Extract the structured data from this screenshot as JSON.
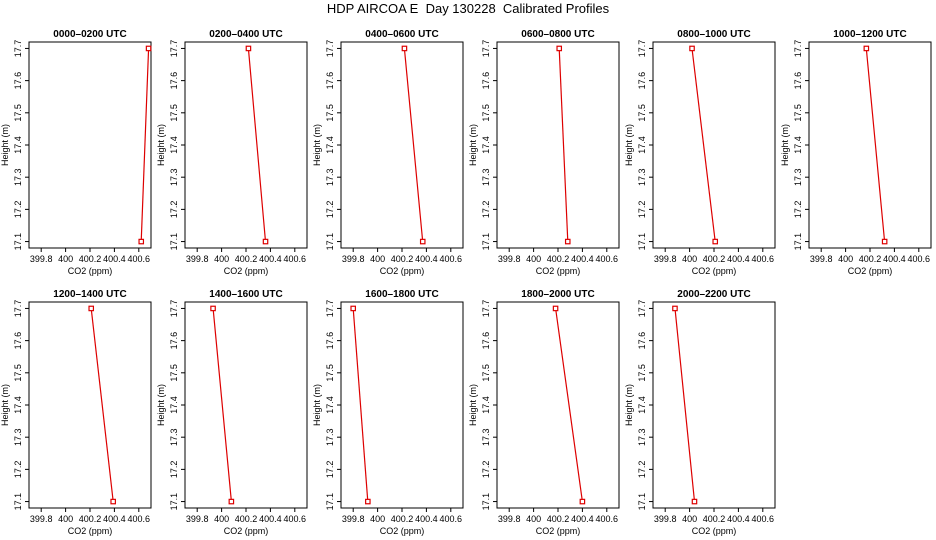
{
  "figure_title": "HDP AIRCOA E  Day 130228  Calibrated Profiles",
  "chart_data": {
    "type": "line",
    "xlabel": "CO2 (ppm)",
    "ylabel": "Height (m)",
    "xlim": [
      399.7,
      400.7
    ],
    "ylim": [
      17.08,
      17.72
    ],
    "x_ticks": [
      "399.8",
      "400",
      "400.2",
      "400.4",
      "400.6"
    ],
    "y_ticks": [
      "17.1",
      "17.2",
      "17.3",
      "17.4",
      "17.5",
      "17.6",
      "17.7"
    ],
    "series_color": "#dd0000",
    "panels": [
      {
        "title": "0000–0200 UTC",
        "points": [
          [
            400.68,
            17.7
          ],
          [
            400.62,
            17.1
          ]
        ]
      },
      {
        "title": "0200–0400 UTC",
        "points": [
          [
            400.22,
            17.7
          ],
          [
            400.36,
            17.1
          ]
        ]
      },
      {
        "title": "0400–0600 UTC",
        "points": [
          [
            400.22,
            17.7
          ],
          [
            400.37,
            17.1
          ]
        ]
      },
      {
        "title": "0600–0800 UTC",
        "points": [
          [
            400.21,
            17.7
          ],
          [
            400.28,
            17.1
          ]
        ]
      },
      {
        "title": "0800–1000 UTC",
        "points": [
          [
            400.02,
            17.7
          ],
          [
            400.21,
            17.1
          ]
        ]
      },
      {
        "title": "1000–1200 UTC",
        "points": [
          [
            400.17,
            17.7
          ],
          [
            400.32,
            17.1
          ]
        ]
      },
      {
        "title": "1200–1400 UTC",
        "points": [
          [
            400.21,
            17.7
          ],
          [
            400.39,
            17.1
          ]
        ]
      },
      {
        "title": "1400–1600 UTC",
        "points": [
          [
            399.93,
            17.7
          ],
          [
            400.08,
            17.1
          ]
        ]
      },
      {
        "title": "1600–1800 UTC",
        "points": [
          [
            399.8,
            17.7
          ],
          [
            399.92,
            17.1
          ]
        ]
      },
      {
        "title": "1800–2000 UTC",
        "points": [
          [
            400.18,
            17.7
          ],
          [
            400.4,
            17.1
          ]
        ]
      },
      {
        "title": "2000–2200 UTC",
        "points": [
          [
            399.88,
            17.7
          ],
          [
            400.04,
            17.1
          ]
        ]
      }
    ]
  }
}
